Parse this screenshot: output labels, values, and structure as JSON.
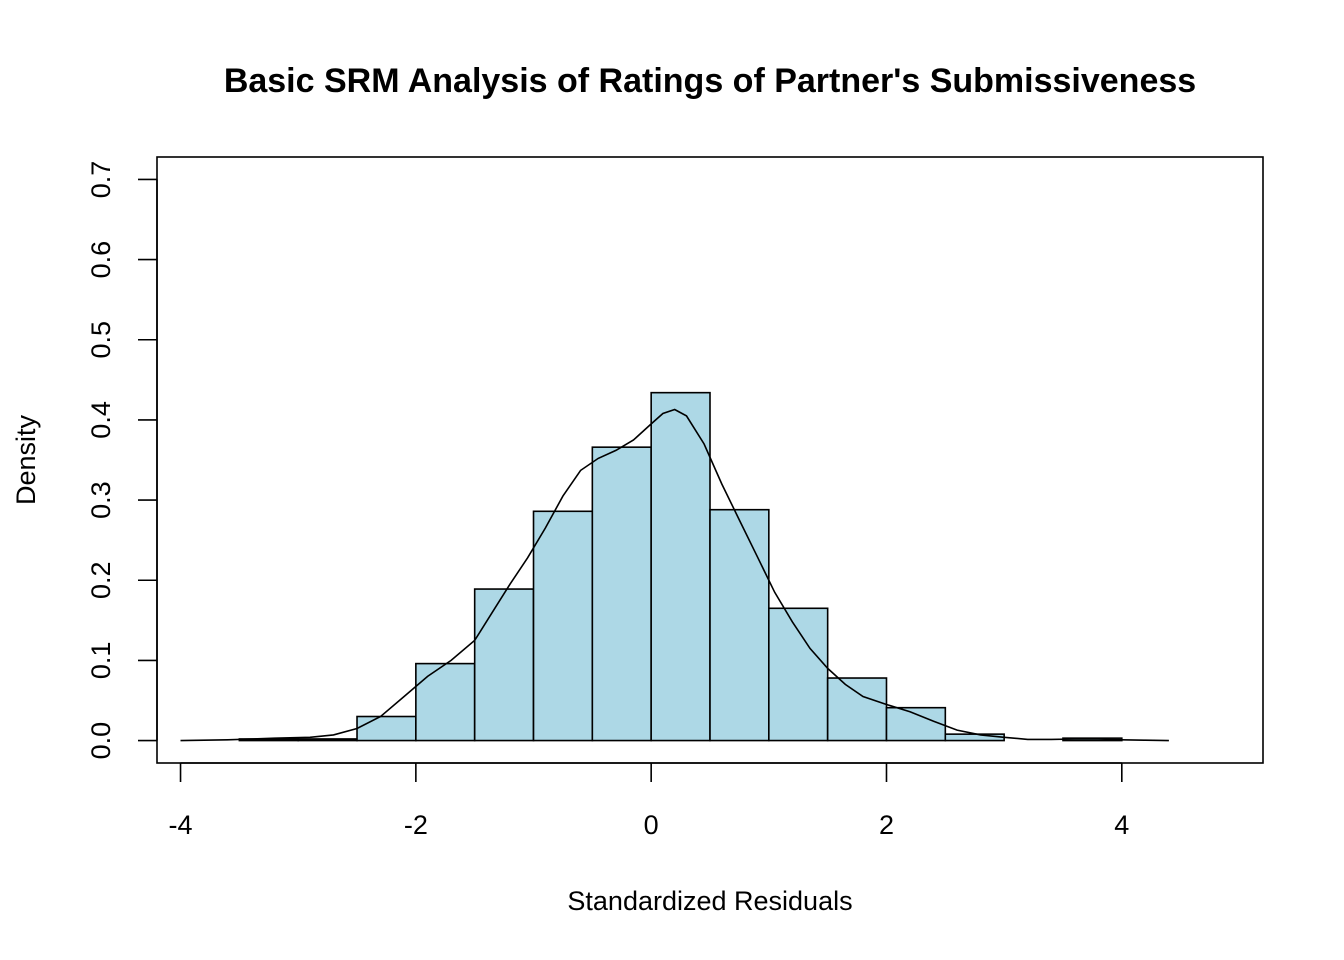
{
  "chart_data": {
    "type": "bar",
    "title": "Basic SRM Analysis of Ratings of Partner's Submissiveness",
    "xlabel": "Standardized Residuals",
    "ylabel": "Density",
    "xlim": [
      -4.2,
      5.2
    ],
    "ylim": [
      -0.028,
      0.728
    ],
    "x_ticks": [
      "-4",
      "-2",
      "0",
      "2",
      "4"
    ],
    "x_tick_values": [
      -4,
      -2,
      0,
      2,
      4
    ],
    "y_ticks": [
      "0.0",
      "0.1",
      "0.2",
      "0.3",
      "0.4",
      "0.5",
      "0.6",
      "0.7"
    ],
    "y_tick_values": [
      0.0,
      0.1,
      0.2,
      0.3,
      0.4,
      0.5,
      0.6,
      0.7
    ],
    "grid": false,
    "histogram": {
      "bin_edges": [
        -3.5,
        -3.0,
        -2.5,
        -2.0,
        -1.5,
        -1.0,
        -0.5,
        0.0,
        0.5,
        1.0,
        1.5,
        2.0,
        2.5,
        3.0,
        3.5,
        4.0
      ],
      "density": [
        0.002,
        0.002,
        0.03,
        0.096,
        0.189,
        0.286,
        0.366,
        0.434,
        0.288,
        0.165,
        0.078,
        0.041,
        0.008,
        0.0,
        0.003
      ],
      "fill_color": "#add8e6",
      "border_color": "#000000"
    },
    "density_curve": {
      "x": [
        -4.0,
        -3.6,
        -3.2,
        -2.9,
        -2.7,
        -2.5,
        -2.3,
        -2.1,
        -1.9,
        -1.7,
        -1.5,
        -1.35,
        -1.2,
        -1.05,
        -0.9,
        -0.75,
        -0.6,
        -0.45,
        -0.3,
        -0.15,
        0.0,
        0.1,
        0.2,
        0.3,
        0.45,
        0.6,
        0.75,
        0.9,
        1.05,
        1.2,
        1.35,
        1.5,
        1.65,
        1.8,
        2.0,
        2.2,
        2.4,
        2.6,
        2.8,
        3.0,
        3.2,
        3.4,
        3.6,
        3.8,
        4.0,
        4.2,
        4.4
      ],
      "y": [
        0.0,
        0.001,
        0.003,
        0.004,
        0.007,
        0.015,
        0.03,
        0.055,
        0.08,
        0.1,
        0.125,
        0.16,
        0.195,
        0.228,
        0.265,
        0.305,
        0.337,
        0.352,
        0.362,
        0.375,
        0.395,
        0.408,
        0.413,
        0.405,
        0.37,
        0.32,
        0.275,
        0.23,
        0.185,
        0.148,
        0.115,
        0.09,
        0.07,
        0.055,
        0.045,
        0.036,
        0.024,
        0.013,
        0.007,
        0.004,
        0.0015,
        0.0015,
        0.002,
        0.002,
        0.001,
        0.0005,
        0.0
      ],
      "color": "#000000"
    }
  }
}
